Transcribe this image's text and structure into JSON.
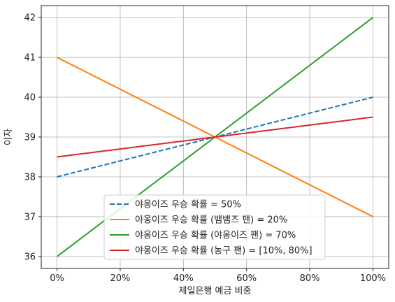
{
  "chart_data": {
    "type": "line",
    "title": "",
    "xlabel": "제일은행 예금 비중",
    "ylabel": "이자",
    "xlim": [
      -0.05,
      1.05
    ],
    "ylim": [
      35.7,
      42.3
    ],
    "x_ticks": [
      0,
      0.2,
      0.4,
      0.6,
      0.8,
      1.0
    ],
    "x_tick_labels": [
      "0%",
      "20%",
      "40%",
      "60%",
      "80%",
      "100%"
    ],
    "y_ticks": [
      36,
      37,
      38,
      39,
      40,
      41,
      42
    ],
    "y_tick_labels": [
      "36",
      "37",
      "38",
      "39",
      "40",
      "41",
      "42"
    ],
    "grid": true,
    "legend_position": "bottom-center",
    "series": [
      {
        "name": "야옹이즈 우승 확률 = 50%",
        "x": [
          0,
          1
        ],
        "y": [
          38,
          40
        ],
        "color": "#1f77b4",
        "dash": true
      },
      {
        "name": "야옹이즈 우승 확률 (뱀뱀즈 팬) = 20%",
        "x": [
          0,
          1
        ],
        "y": [
          41,
          37
        ],
        "color": "#ff7f0e",
        "dash": false
      },
      {
        "name": "야옹이즈 우승 확률 (야옹이즈 팬) = 70%",
        "x": [
          0,
          1
        ],
        "y": [
          36,
          42
        ],
        "color": "#2ca02c",
        "dash": false
      },
      {
        "name": "야옹이즈 우승 확률 (농구 팬) = [10%, 80%]",
        "x": [
          0,
          1
        ],
        "y": [
          38.5,
          39.5
        ],
        "color": "#d62728",
        "dash": false
      }
    ]
  }
}
